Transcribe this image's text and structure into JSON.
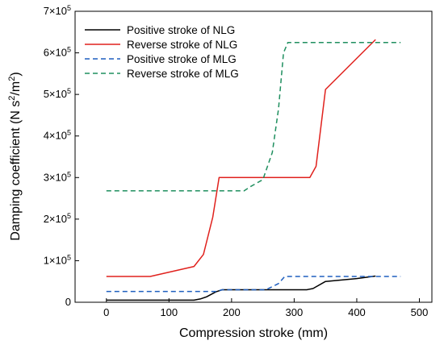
{
  "chart_data": {
    "type": "line",
    "xlabel": "Compression stroke (mm)",
    "ylabel_text": "Damping coefficient (N s",
    "ylabel_sup1": "2",
    "ylabel_mid": "/m",
    "ylabel_sup2": "2",
    "ylabel_end": ")",
    "xlim": [
      -50,
      520
    ],
    "ylim": [
      0,
      700000
    ],
    "xticks": [
      0,
      100,
      200,
      300,
      400,
      500
    ],
    "yticks": [
      {
        "value": 0,
        "base": "0",
        "exp": ""
      },
      {
        "value": 100000,
        "base": "1×10",
        "exp": "5"
      },
      {
        "value": 200000,
        "base": "2×10",
        "exp": "5"
      },
      {
        "value": 300000,
        "base": "3×10",
        "exp": "5"
      },
      {
        "value": 400000,
        "base": "4×10",
        "exp": "5"
      },
      {
        "value": 500000,
        "base": "5×10",
        "exp": "5"
      },
      {
        "value": 600000,
        "base": "6×10",
        "exp": "5"
      },
      {
        "value": 700000,
        "base": "7×10",
        "exp": "5"
      }
    ],
    "legend_position": "top-left",
    "series": [
      {
        "name": "Positive stroke of NLG",
        "color": "#000000",
        "dash": "solid",
        "x": [
          0,
          140,
          150,
          160,
          175,
          185,
          250,
          320,
          330,
          350,
          400,
          430
        ],
        "y": [
          5000,
          5000,
          8000,
          13000,
          25000,
          30000,
          30000,
          30000,
          33000,
          50000,
          57000,
          63000
        ]
      },
      {
        "name": "Reverse stroke of NLG",
        "color": "#e0211d",
        "dash": "solid",
        "x": [
          0,
          70,
          140,
          155,
          170,
          180,
          250,
          325,
          335,
          350,
          430
        ],
        "y": [
          62000,
          62000,
          86000,
          115000,
          205000,
          300000,
          300000,
          300000,
          327000,
          512000,
          632000
        ]
      },
      {
        "name": "Positive stroke of MLG",
        "color": "#1f5fbf",
        "dash": "dashed",
        "x": [
          0,
          175,
          185,
          255,
          275,
          285,
          470
        ],
        "y": [
          26000,
          26000,
          30000,
          30000,
          45000,
          62000,
          62000
        ]
      },
      {
        "name": "Reverse stroke of MLG",
        "color": "#1f8f5f",
        "dash": "dashed",
        "x": [
          0,
          220,
          230,
          250,
          265,
          275,
          283,
          290,
          470
        ],
        "y": [
          268000,
          268000,
          278000,
          295000,
          360000,
          465000,
          600000,
          625000,
          625000
        ]
      }
    ]
  }
}
